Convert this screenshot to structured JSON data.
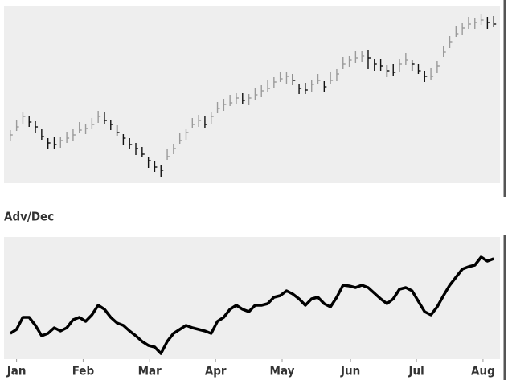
{
  "chart_data": [
    {
      "type": "ohlc",
      "up_color": "#9a9a9a",
      "down_color": "#111111",
      "x": [
        0,
        1,
        2,
        3,
        4,
        5,
        6,
        7,
        8,
        9,
        10,
        11,
        12,
        13,
        14,
        15,
        16,
        17,
        18,
        19,
        20,
        21,
        22,
        23,
        24,
        25,
        26,
        27,
        28,
        29,
        30,
        31,
        32,
        33,
        34,
        35,
        36,
        37,
        38,
        39,
        40,
        41,
        42,
        43,
        44,
        45,
        46,
        47,
        48,
        49,
        50,
        51,
        52,
        53,
        54,
        55,
        56,
        57,
        58,
        59,
        60,
        61,
        62,
        63,
        64,
        65,
        66,
        67,
        68,
        69,
        70,
        71,
        72,
        73,
        74,
        75,
        76,
        77
      ],
      "close": [
        60,
        70,
        83,
        76,
        70,
        58,
        50,
        48,
        53,
        56,
        60,
        66,
        68,
        73,
        83,
        78,
        73,
        63,
        56,
        48,
        43,
        36,
        28,
        20,
        16,
        33,
        43,
        53,
        63,
        73,
        78,
        73,
        83,
        93,
        98,
        100,
        106,
        103,
        106,
        110,
        115,
        118,
        126,
        130,
        133,
        128,
        118,
        116,
        123,
        128,
        120,
        128,
        136,
        148,
        153,
        156,
        158,
        156,
        148,
        146,
        140,
        138,
        148,
        153,
        148,
        140,
        133,
        133,
        146,
        163,
        176,
        186,
        193,
        198,
        200,
        203,
        200,
        198
      ],
      "high": [
        66,
        79,
        88,
        84,
        77,
        68,
        56,
        57,
        58,
        64,
        67,
        76,
        74,
        81,
        90,
        88,
        79,
        72,
        61,
        56,
        50,
        45,
        33,
        28,
        23,
        43,
        49,
        62,
        68,
        81,
        85,
        83,
        88,
        101,
        105,
        110,
        112,
        112,
        111,
        118,
        122,
        128,
        132,
        139,
        138,
        136,
        124,
        125,
        128,
        136,
        127,
        138,
        142,
        157,
        158,
        164,
        165,
        166,
        154,
        154,
        147,
        148,
        154,
        162,
        153,
        148,
        140,
        143,
        152,
        171,
        183,
        196,
        199,
        207,
        205,
        211,
        207,
        208
      ],
      "low": [
        53,
        65,
        74,
        70,
        62,
        54,
        43,
        43,
        44,
        50,
        52,
        62,
        61,
        68,
        75,
        74,
        66,
        59,
        47,
        42,
        35,
        32,
        19,
        14,
        8,
        29,
        36,
        49,
        54,
        69,
        70,
        69,
        74,
        87,
        90,
        96,
        99,
        98,
        97,
        104,
        107,
        114,
        119,
        126,
        124,
        122,
        111,
        111,
        114,
        124,
        113,
        124,
        127,
        142,
        145,
        150,
        151,
        142,
        140,
        140,
        132,
        134,
        139,
        147,
        140,
        136,
        126,
        129,
        137,
        157,
        168,
        182,
        184,
        192,
        192,
        197,
        192,
        194
      ],
      "xlim": [
        -1,
        78
      ],
      "ylim": [
        0,
        220
      ]
    },
    {
      "type": "line",
      "title": "Adv/Dec",
      "color": "#000000",
      "x": [
        0,
        1,
        2,
        3,
        4,
        5,
        6,
        7,
        8,
        9,
        10,
        11,
        12,
        13,
        14,
        15,
        16,
        17,
        18,
        19,
        20,
        21,
        22,
        23,
        24,
        25,
        26,
        27,
        28,
        29,
        30,
        31,
        32,
        33,
        34,
        35,
        36,
        37,
        38,
        39,
        40,
        41,
        42,
        43,
        44,
        45,
        46,
        47,
        48,
        49,
        50,
        51,
        52,
        53,
        54,
        55,
        56,
        57,
        58,
        59,
        60,
        61,
        62,
        63,
        64,
        65,
        66,
        67,
        68,
        69,
        70,
        71,
        72,
        73,
        74,
        75,
        76,
        77
      ],
      "values": [
        32,
        37,
        52,
        52,
        42,
        29,
        32,
        39,
        35,
        39,
        49,
        52,
        47,
        55,
        67,
        62,
        52,
        45,
        42,
        35,
        29,
        22,
        17,
        15,
        7,
        22,
        32,
        37,
        42,
        39,
        37,
        35,
        32,
        47,
        52,
        62,
        67,
        62,
        59,
        67,
        67,
        69,
        77,
        79,
        85,
        81,
        75,
        67,
        75,
        77,
        69,
        65,
        77,
        92,
        91,
        89,
        92,
        89,
        82,
        75,
        69,
        75,
        87,
        89,
        85,
        72,
        59,
        55,
        65,
        79,
        92,
        102,
        112,
        115,
        117,
        127,
        122,
        125
      ],
      "xlim": [
        -1,
        78
      ],
      "ylim": [
        0,
        152
      ],
      "xticks": [
        {
          "value": 1,
          "label": "Jan"
        },
        {
          "value": 11.6,
          "label": "Feb"
        },
        {
          "value": 22.2,
          "label": "Mar"
        },
        {
          "value": 32.7,
          "label": "Apr"
        },
        {
          "value": 43.3,
          "label": "May"
        },
        {
          "value": 54.2,
          "label": "Jun"
        },
        {
          "value": 64.7,
          "label": "Jul"
        },
        {
          "value": 75.3,
          "label": "Aug"
        }
      ]
    }
  ]
}
